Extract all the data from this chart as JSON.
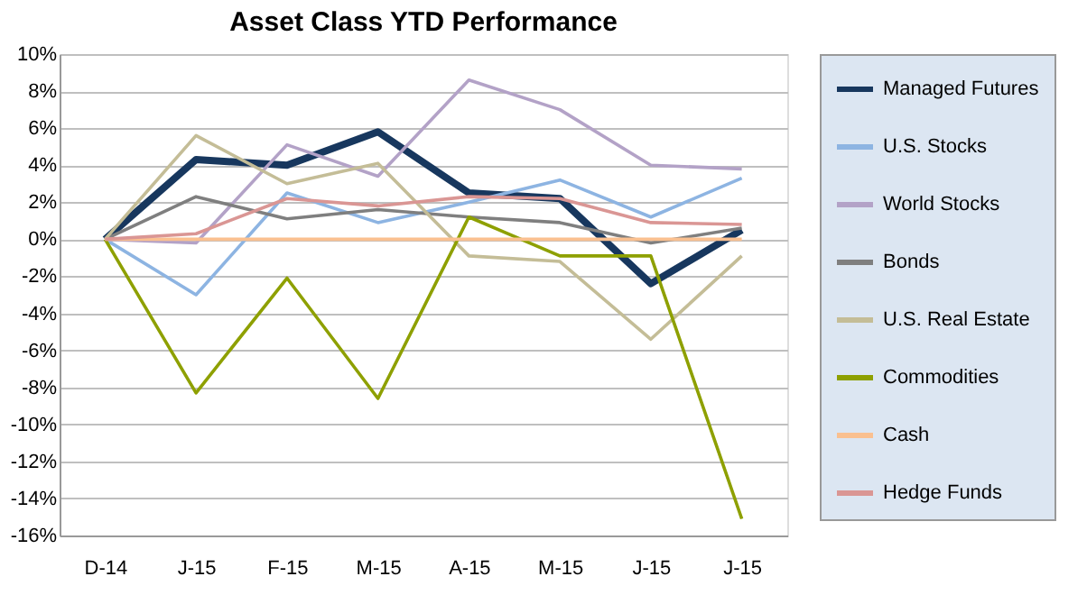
{
  "chart_data": {
    "type": "line",
    "title": "Asset Class YTD Performance",
    "categories": [
      "D-14",
      "J-15",
      "F-15",
      "M-15",
      "A-15",
      "M-15",
      "J-15",
      "J-15"
    ],
    "series": [
      {
        "name": "Managed Futures",
        "color": "#17375e",
        "values": [
          0,
          4.3,
          4.0,
          5.8,
          2.5,
          2.2,
          -2.4,
          0.5
        ]
      },
      {
        "name": "U.S. Stocks",
        "color": "#8db4e2",
        "values": [
          0,
          -3.0,
          2.5,
          0.9,
          2.0,
          3.2,
          1.2,
          3.3
        ]
      },
      {
        "name": "World Stocks",
        "color": "#b3a2c7",
        "values": [
          0,
          -0.2,
          5.1,
          3.4,
          8.6,
          7.0,
          4.0,
          3.8
        ]
      },
      {
        "name": "Bonds",
        "color": "#7f7f7f",
        "values": [
          0,
          2.3,
          1.1,
          1.6,
          1.2,
          0.9,
          -0.2,
          0.6
        ]
      },
      {
        "name": "U.S. Real Estate",
        "color": "#c4bd97",
        "values": [
          0,
          5.6,
          3.0,
          4.1,
          -0.9,
          -1.2,
          -5.4,
          -0.9
        ]
      },
      {
        "name": "Commodities",
        "color": "#8ea000",
        "values": [
          0,
          -8.3,
          -2.1,
          -8.6,
          1.2,
          -0.9,
          -0.9,
          -15.1
        ]
      },
      {
        "name": "Cash",
        "color": "#fac090",
        "values": [
          0,
          0,
          0,
          0,
          0,
          0,
          0,
          0
        ]
      },
      {
        "name": "Hedge Funds",
        "color": "#da9694",
        "values": [
          0,
          0.3,
          2.2,
          1.8,
          2.3,
          2.2,
          0.9,
          0.8
        ]
      }
    ],
    "ylim": [
      -16,
      10
    ],
    "yticks": [
      {
        "value": -16,
        "label": "-16%"
      },
      {
        "value": -14,
        "label": "-14%"
      },
      {
        "value": -12,
        "label": "-12%"
      },
      {
        "value": -10,
        "label": "-10%"
      },
      {
        "value": -8,
        "label": "-8%"
      },
      {
        "value": -6,
        "label": "-6%"
      },
      {
        "value": -4,
        "label": "-4%"
      },
      {
        "value": -2,
        "label": "-2%"
      },
      {
        "value": 0,
        "label": "0%"
      },
      {
        "value": 2,
        "label": "2%"
      },
      {
        "value": 4,
        "label": "4%"
      },
      {
        "value": 6,
        "label": "6%"
      },
      {
        "value": 8,
        "label": "8%"
      },
      {
        "value": 10,
        "label": "10%"
      }
    ],
    "grid": "y",
    "legend": "right",
    "marker": "none",
    "line_style": "solid"
  }
}
